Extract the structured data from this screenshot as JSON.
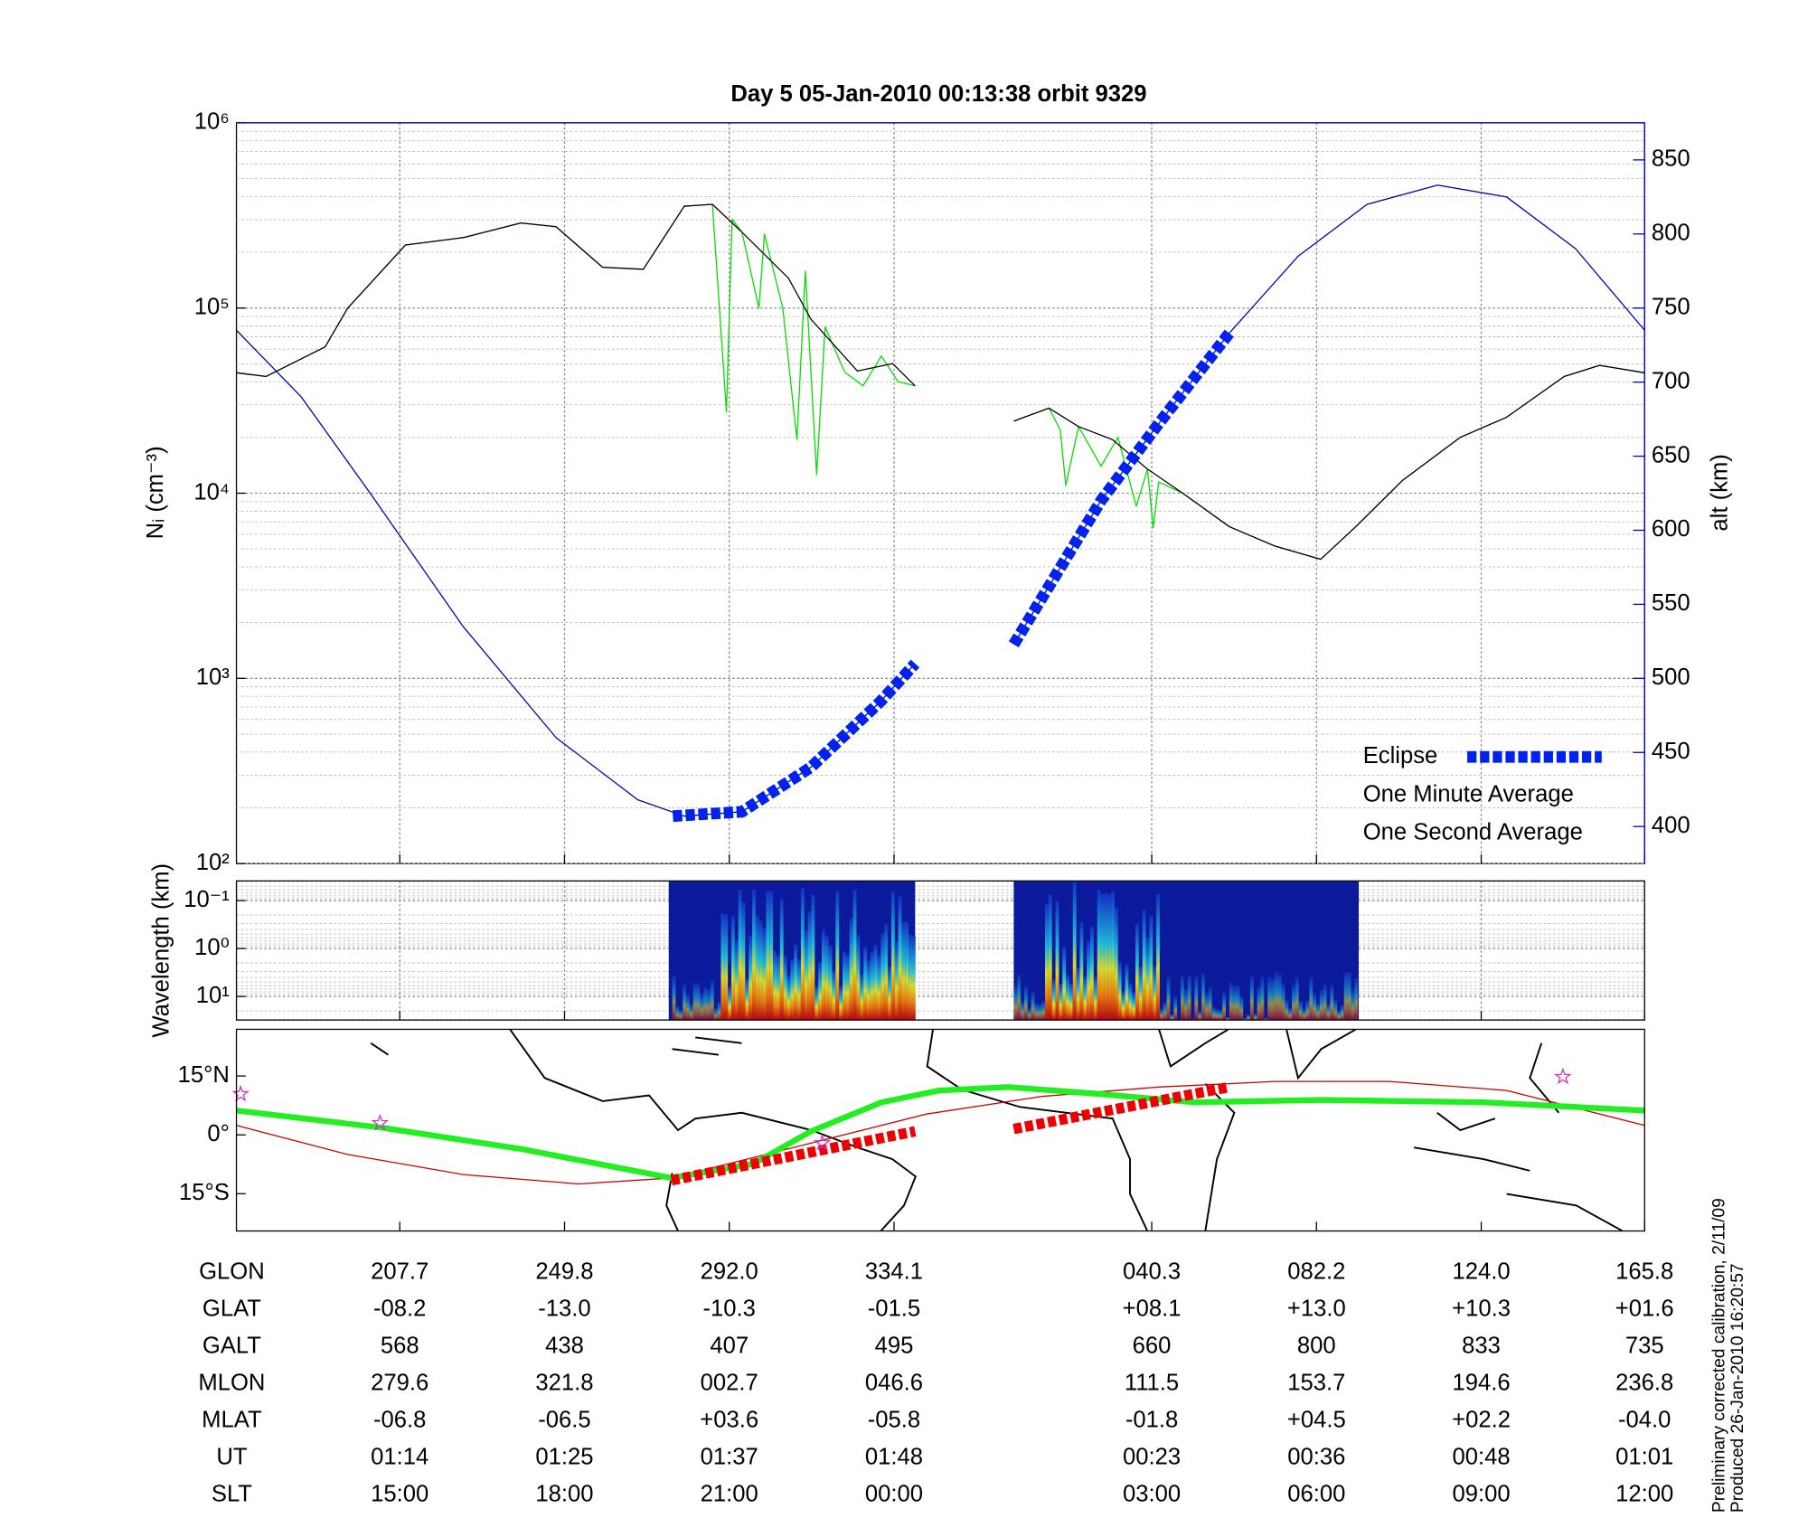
{
  "chart_data": [
    {
      "type": "line",
      "title": "Day 5  05-Jan-2010 00:13:38   orbit 9329",
      "ylabel": "Nᵢ (cm⁻³)",
      "y2label": "alt (km)",
      "log_y": true,
      "ylim": [
        100,
        1000000
      ],
      "yticks": [
        {
          "value": 100,
          "label": "10²"
        },
        {
          "value": 1000,
          "label": "10³"
        },
        {
          "value": 10000,
          "label": "10⁴"
        },
        {
          "value": 100000,
          "label": "10⁵"
        },
        {
          "value": 1000000,
          "label": "10⁶"
        }
      ],
      "y2lim": [
        375,
        875
      ],
      "y2ticks": [
        400,
        450,
        500,
        550,
        600,
        650,
        700,
        750,
        800,
        850
      ],
      "xlim": [
        0,
        100
      ],
      "xticks": [
        11.6,
        23.3,
        35.0,
        46.7,
        65.0,
        76.7,
        88.4,
        100
      ],
      "grid": true,
      "legend": "lower right",
      "series": [
        {
          "name": "One Second Average",
          "color": "#00dd00",
          "x": [
            0,
            2.1,
            6.3,
            7.9,
            12.0,
            16.1,
            20.2,
            22.7,
            26.0,
            28.9,
            31.8,
            33.8,
            34.8,
            35.2,
            35.9,
            37.1,
            37.5,
            38.8,
            39.8,
            40.4,
            41.2,
            41.8,
            43.2,
            44.5,
            45.8,
            47.0,
            48.2,
            null,
            55.2,
            57.7,
            58.5,
            58.9,
            59.8,
            61.4,
            62.6,
            63.9,
            64.7,
            65.1,
            65.5,
            67.2,
            70.5,
            73.7,
            77.0,
            79.5,
            82.8,
            86.9,
            90.2,
            94.3,
            96.8,
            100
          ],
          "values": [
            44700,
            42700,
            61700,
            100000,
            219000,
            240000,
            288000,
            275000,
            166000,
            162000,
            355000,
            363000,
            27500,
            302000,
            257000,
            100000,
            251000,
            100000,
            19500,
            158000,
            12600,
            79000,
            45000,
            38000,
            55000,
            40000,
            38000,
            null,
            24500,
            28800,
            22000,
            11000,
            22900,
            14000,
            20000,
            8500,
            13500,
            6500,
            11500,
            10000,
            6600,
            5200,
            4400,
            6600,
            11700,
            20000,
            25700,
            42700,
            49000,
            44700
          ]
        },
        {
          "name": "One Minute Average",
          "color": "#000000",
          "x": [
            0,
            2.1,
            6.3,
            7.9,
            12.0,
            16.1,
            20.2,
            22.7,
            26.0,
            28.9,
            31.8,
            33.8,
            35.9,
            39.2,
            40.8,
            44.1,
            46.6,
            48.2,
            null,
            55.2,
            57.7,
            59.8,
            62.2,
            64.7,
            67.2,
            70.5,
            73.7,
            77.0,
            79.5,
            82.8,
            86.9,
            90.2,
            94.3,
            96.8,
            100
          ],
          "values": [
            44700,
            42700,
            61700,
            100000,
            219000,
            240000,
            288000,
            275000,
            166000,
            162000,
            355000,
            363000,
            257000,
            145000,
            87000,
            45700,
            50100,
            38000,
            null,
            24500,
            28800,
            22900,
            19500,
            13500,
            10000,
            6600,
            5200,
            4400,
            6600,
            11700,
            20000,
            25700,
            42700,
            49000,
            44700
          ]
        },
        {
          "color": "#0000aa",
          "axis": "y2",
          "x": [
            0,
            4.6,
            9.5,
            16.1,
            22.7,
            28.5,
            31.8,
            35.9,
            40.8,
            45.8,
            48.2,
            null,
            55.2,
            61.4,
            65.5,
            70.5,
            75.4,
            80.3,
            85.3,
            90.2,
            95.1,
            100
          ],
          "values": [
            735,
            690,
            625,
            535,
            460,
            418,
            407,
            410,
            440,
            485,
            510,
            null,
            523,
            620,
            672,
            733,
            785,
            820,
            833,
            825,
            790,
            735
          ]
        },
        {
          "name": "Eclipse",
          "color": "#0022ee",
          "axis": "y2",
          "dashed": true,
          "x": [
            31.0,
            35.9,
            40.8,
            45.8,
            48.2,
            null,
            55.2,
            61.4,
            65.5,
            70.5
          ],
          "values": [
            407,
            410,
            440,
            485,
            510,
            null,
            523,
            620,
            672,
            733
          ]
        }
      ]
    },
    {
      "type": "spectrogram",
      "ylabel": "Wavelength (km)",
      "log_y": true,
      "inverted_y": true,
      "ylim": [
        0.039,
        31
      ],
      "yticks": [
        {
          "value": 0.1,
          "label": "10⁻¹"
        },
        {
          "value": 1,
          "label": "10⁰"
        },
        {
          "value": 10,
          "label": "10¹"
        }
      ],
      "xlim": [
        0,
        100
      ],
      "xticks": [
        11.6,
        23.3,
        35.0,
        46.7,
        65.0,
        76.7,
        88.4,
        100
      ],
      "grid": true,
      "segments": [
        [
          30.7,
          48.2
        ],
        [
          55.2,
          79.7
        ]
      ]
    },
    {
      "type": "map",
      "ylim": [
        -24.5,
        26.9
      ],
      "yticks": [
        {
          "value": 15,
          "label": "15°N"
        },
        {
          "value": 0,
          "label": "0°"
        },
        {
          "value": -15,
          "label": "15°S"
        }
      ],
      "xlim": [
        0,
        100
      ],
      "xticks": [
        11.6,
        23.3,
        35.0,
        46.7,
        65.0,
        76.7,
        88.4,
        100
      ],
      "series": [
        {
          "color": "#cc0000",
          "x": [
            0,
            7.9,
            16.1,
            24.3,
            30.9,
            40.8,
            49.0,
            57.2,
            65.5,
            73.7,
            81.9,
            90.2,
            100
          ],
          "values": [
            2.4,
            -5,
            -10.1,
            -12.5,
            -11,
            -2.1,
            5.3,
            9.8,
            12.2,
            13.6,
            13.6,
            11.3,
            2.4
          ]
        },
        {
          "color": "#22ee22",
          "width": 5,
          "x": [
            0,
            10.4,
            20.2,
            30.9,
            36.7,
            40.8,
            45.8,
            49.9,
            54.8,
            61.4,
            68.0,
            77.0,
            88.6,
            100
          ],
          "values": [
            6.2,
            1.8,
            -3.6,
            -11.0,
            -7.4,
            0.9,
            8.3,
            11.3,
            12.2,
            10.4,
            8.3,
            8.9,
            8.3,
            6.2
          ]
        },
        {
          "color": "#ee0000",
          "width": 9,
          "dashed": true,
          "x": [
            30.9,
            48.2,
            null,
            55.2,
            70.5
          ],
          "values": [
            -11.6,
            0.9,
            null,
            1.5,
            12.2
          ]
        }
      ],
      "markers": {
        "color": "#cc33cc",
        "x": [
          0.3,
          10.2,
          41.6,
          94.2
        ],
        "values": [
          10.4,
          3.0,
          -2.1,
          14.8
        ]
      }
    }
  ],
  "table": {
    "rows": [
      {
        "label": "GLON",
        "cells": [
          "207.7",
          "249.8",
          "292.0",
          "334.1",
          "040.3",
          "082.2",
          "124.0",
          "165.8"
        ]
      },
      {
        "label": "GLAT",
        "cells": [
          "-08.2",
          "-13.0",
          "-10.3",
          "-01.5",
          "+08.1",
          "+13.0",
          "+10.3",
          "+01.6"
        ]
      },
      {
        "label": "GALT",
        "cells": [
          "568",
          "438",
          "407",
          "495",
          "660",
          "800",
          "833",
          "735"
        ]
      },
      {
        "label": "MLON",
        "cells": [
          "279.6",
          "321.8",
          "002.7",
          "046.6",
          "111.5",
          "153.7",
          "194.6",
          "236.8"
        ]
      },
      {
        "label": "MLAT",
        "cells": [
          "-06.8",
          "-06.5",
          "+03.6",
          "-05.8",
          "-01.8",
          "+04.5",
          "+02.2",
          "-04.0"
        ]
      },
      {
        "label": "UT",
        "cells": [
          "01:14",
          "01:25",
          "01:37",
          "01:48",
          "00:23",
          "00:36",
          "00:48",
          "01:01"
        ]
      },
      {
        "label": "SLT",
        "cells": [
          "15:00",
          "18:00",
          "21:00",
          "00:00",
          "03:00",
          "06:00",
          "09:00",
          "12:00"
        ]
      }
    ]
  },
  "footer": [
    "Preliminary corrected calibration, 2/11/09",
    "Produced 26-Jan-2010 16:20:57"
  ]
}
